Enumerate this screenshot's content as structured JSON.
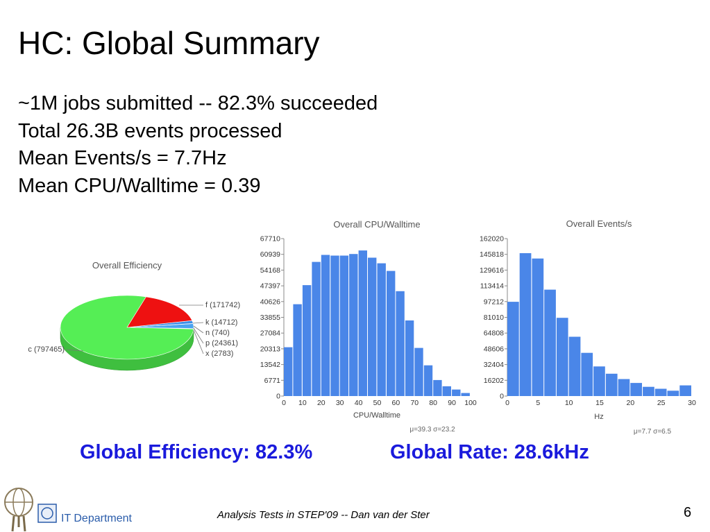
{
  "slide": {
    "title": "HC: Global Summary",
    "bullets": [
      "~1M jobs submitted -- 82.3% succeeded",
      "Total 26.3B events processed",
      "Mean Events/s = 7.7Hz",
      "Mean CPU/Walltime = 0.39"
    ],
    "global_efficiency": "Global Efficiency: 82.3%",
    "global_rate": "Global Rate: 28.6kHz",
    "footer": "Analysis Tests in STEP'09 -- Dan van der Ster",
    "page_number": "6",
    "department": "IT Department",
    "accent_color": "#1a1adc"
  },
  "chart_data": [
    {
      "type": "pie",
      "title": "Overall Efficiency",
      "slices": [
        {
          "label": "c (797465)",
          "value": 797465,
          "color": "#55ee55"
        },
        {
          "label": "f (171742)",
          "value": 171742,
          "color": "#ee1111"
        },
        {
          "label": "k (14712)",
          "value": 14712,
          "color": "#3a8ee6"
        },
        {
          "label": "n (740)",
          "value": 740,
          "color": "#b0b0b0"
        },
        {
          "label": "p (24361)",
          "value": 24361,
          "color": "#4aa3f0"
        },
        {
          "label": "x (2783)",
          "value": 2783,
          "color": "#3366cc"
        }
      ]
    },
    {
      "type": "bar",
      "title": "Overall CPU/Walltime",
      "xlabel": "CPU/Walltime",
      "xlim": [
        0,
        100
      ],
      "bin_width": 5,
      "x_ticks": [
        "0",
        "10",
        "20",
        "30",
        "40",
        "50",
        "60",
        "70",
        "80",
        "90",
        "100"
      ],
      "y_ticks": [
        "0",
        "6771",
        "13542",
        "20313",
        "27084",
        "33855",
        "40626",
        "47397",
        "54168",
        "60939",
        "67710"
      ],
      "ylim": [
        0,
        67710
      ],
      "values": [
        21000,
        39500,
        47700,
        57700,
        60700,
        60400,
        60400,
        61100,
        62600,
        59500,
        57100,
        53800,
        45100,
        32500,
        20700,
        13200,
        6900,
        4200,
        2800,
        1300
      ],
      "stats": "μ=39.3 σ=23.2",
      "bar_color": "#4a86e8"
    },
    {
      "type": "bar",
      "title": "Overall Events/s",
      "xlabel": "Hz",
      "xlim": [
        0,
        30
      ],
      "bin_width": 2,
      "x_ticks": [
        "0",
        "5",
        "10",
        "15",
        "20",
        "25",
        "30"
      ],
      "y_ticks": [
        "0",
        "16202",
        "32404",
        "48606",
        "64808",
        "81010",
        "97212",
        "113414",
        "129616",
        "145818",
        "162020"
      ],
      "ylim": [
        0,
        162020
      ],
      "values": [
        97000,
        147000,
        141500,
        109500,
        80500,
        61000,
        44500,
        30500,
        23000,
        17500,
        13500,
        9500,
        7500,
        5500,
        11000
      ],
      "stats": "μ=7.7 σ=6.5",
      "bar_color": "#4a86e8"
    }
  ]
}
